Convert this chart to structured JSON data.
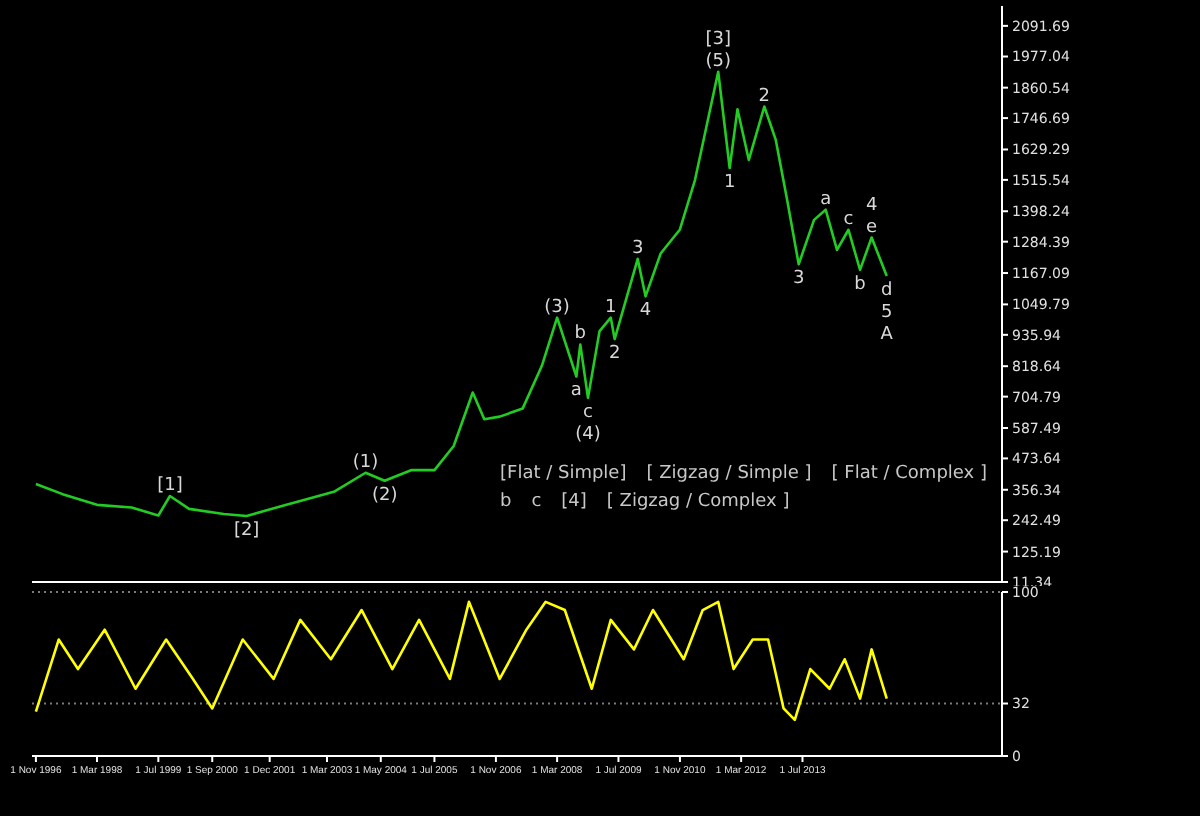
{
  "chart_data": [
    {
      "type": "line",
      "tick_labels": "y",
      "legend": false,
      "grid": false,
      "xlim": [
        "1996-10",
        "2017-11"
      ],
      "ylim": [
        11.34,
        2166
      ],
      "yticks": [
        11.34,
        125.19,
        242.49,
        356.34,
        473.64,
        587.49,
        704.79,
        818.64,
        935.94,
        1049.79,
        1167.09,
        1284.39,
        1398.24,
        1515.54,
        1629.29,
        1746.69,
        1860.54,
        1977.04,
        2091.69
      ],
      "x": [
        "1996-11",
        "1997-06",
        "1998-03",
        "1998-12",
        "1999-07",
        "1999-10",
        "2000-03",
        "2000-12",
        "2001-06",
        "2002-03",
        "2002-12",
        "2003-05",
        "2004-01",
        "2004-06",
        "2005-01",
        "2005-07",
        "2005-12",
        "2006-05",
        "2006-08",
        "2006-12",
        "2007-06",
        "2007-11",
        "2008-03",
        "2008-08",
        "2008-09",
        "2008-11",
        "2009-02",
        "2009-05",
        "2009-06",
        "2009-12",
        "2010-02",
        "2010-06",
        "2010-11",
        "2011-03",
        "2011-09",
        "2011-12",
        "2012-02",
        "2012-05",
        "2012-09",
        "2012-12",
        "2013-03",
        "2013-06",
        "2013-10",
        "2014-01",
        "2014-04",
        "2014-07",
        "2014-10",
        "2015-01",
        "2015-05"
      ],
      "series": [
        {
          "color": "#22cc22",
          "values": [
            378,
            340,
            300,
            290,
            260,
            333,
            285,
            266,
            258,
            295,
            330,
            350,
            420,
            390,
            430,
            430,
            520,
            720,
            620,
            630,
            660,
            820,
            1000,
            780,
            900,
            700,
            950,
            1000,
            920,
            1220,
            1080,
            1240,
            1330,
            1516,
            1920,
            1560,
            1780,
            1590,
            1790,
            1665,
            1441,
            1200,
            1366,
            1404,
            1254,
            1329,
            1179,
            1300,
            1156
          ]
        }
      ],
      "annotations": [
        {
          "text": "[1]",
          "x": "1999-10",
          "y": 333
        },
        {
          "text": "[2]",
          "x": "2001-06",
          "y": 258
        },
        {
          "text": "(1)",
          "x": "2004-01",
          "y": 420
        },
        {
          "text": "(2)",
          "x": "2004-06",
          "y": 390
        },
        {
          "text": "(3)",
          "x": "2008-03",
          "y": 1000
        },
        {
          "text": "a",
          "x": "2008-08",
          "y": 780
        },
        {
          "text": "b",
          "x": "2008-09",
          "y": 900
        },
        {
          "text": "c",
          "x": "2008-11",
          "y": 700
        },
        {
          "text": "(4)",
          "x": "2008-11",
          "y": 700
        },
        {
          "text": "1",
          "x": "2009-05",
          "y": 1000
        },
        {
          "text": "2",
          "x": "2009-06",
          "y": 920
        },
        {
          "text": "3",
          "x": "2009-12",
          "y": 1220
        },
        {
          "text": "4",
          "x": "2010-02",
          "y": 1080
        },
        {
          "text": "(5)",
          "x": "2011-09",
          "y": 1920
        },
        {
          "text": "[3]",
          "x": "2011-09",
          "y": 1920
        },
        {
          "text": "1",
          "x": "2011-12",
          "y": 1560
        },
        {
          "text": "2",
          "x": "2012-09",
          "y": 1790
        },
        {
          "text": "3",
          "x": "2013-06",
          "y": 1200
        },
        {
          "text": "a",
          "x": "2014-01",
          "y": 1404
        },
        {
          "text": "c",
          "x": "2014-07",
          "y": 1329
        },
        {
          "text": "b",
          "x": "2014-10",
          "y": 1179
        },
        {
          "text": "e",
          "x": "2015-01",
          "y": 1300
        },
        {
          "text": "4",
          "x": "2015-01",
          "y": 1300
        },
        {
          "text": "d",
          "x": "2015-05",
          "y": 1156
        },
        {
          "text": "5",
          "x": "2015-05",
          "y": 1156
        },
        {
          "text": "A",
          "x": "2015-05",
          "y": 1156
        },
        "[Flat / Simple]",
        "[ Zigzag / Simple ]",
        "[ Flat / Complex ]",
        "b",
        "c",
        "[4]",
        "[ Zigzag / Complex ]"
      ]
    },
    {
      "type": "line",
      "legend": false,
      "grid": "y",
      "xlim": [
        "1996-10",
        "2017-11"
      ],
      "xticks": [
        {
          "value": "1996-11-01",
          "label": "1 Nov 1996"
        },
        {
          "value": "1998-03-01",
          "label": "1 Mar 1998"
        },
        {
          "value": "1999-07-01",
          "label": "1 Jul 1999"
        },
        {
          "value": "2000-09-01",
          "label": "1 Sep 2000"
        },
        {
          "value": "2001-12-01",
          "label": "1 Dec 2001"
        },
        {
          "value": "2003-03-01",
          "label": "1 Mar 2003"
        },
        {
          "value": "2004-05-01",
          "label": "1 May 2004"
        },
        {
          "value": "2005-07-01",
          "label": "1 Jul 2005"
        },
        {
          "value": "2006-11-01",
          "label": "1 Nov 2006"
        },
        {
          "value": "2008-03-01",
          "label": "1 Mar 2008"
        },
        {
          "value": "2009-07-01",
          "label": "1 Jul 2009"
        },
        {
          "value": "2010-11-01",
          "label": "1 Nov 2010"
        },
        {
          "value": "2012-03-01",
          "label": "1 Mar 2012"
        },
        {
          "value": "2013-07-01",
          "label": "1 Jul 2013"
        }
      ],
      "ylim": [
        0,
        100
      ],
      "yticks": [
        0,
        32,
        100
      ],
      "x": [
        "1996-11",
        "1997-05",
        "1997-10",
        "1998-05",
        "1999-01",
        "1999-09",
        "2000-04",
        "2000-09",
        "2001-05",
        "2002-01",
        "2002-08",
        "2003-04",
        "2003-12",
        "2004-08",
        "2005-03",
        "2005-11",
        "2006-04",
        "2006-12",
        "2007-07",
        "2007-12",
        "2008-05",
        "2008-12",
        "2009-05",
        "2009-11",
        "2010-04",
        "2010-12",
        "2011-05",
        "2011-09",
        "2012-01",
        "2012-06",
        "2012-10",
        "2013-02",
        "2013-05",
        "2013-09",
        "2014-02",
        "2014-06",
        "2014-10",
        "2015-01",
        "2015-05"
      ],
      "series": [
        {
          "color": "#ffff00",
          "values": [
            27,
            71,
            53,
            77,
            41,
            71,
            47,
            29,
            71,
            47,
            83,
            59,
            89,
            53,
            83,
            47,
            94,
            47,
            77,
            94,
            89,
            41,
            83,
            65,
            89,
            59,
            89,
            94,
            53,
            71,
            71,
            29,
            22,
            53,
            41,
            59,
            35,
            65,
            35
          ]
        }
      ]
    }
  ]
}
